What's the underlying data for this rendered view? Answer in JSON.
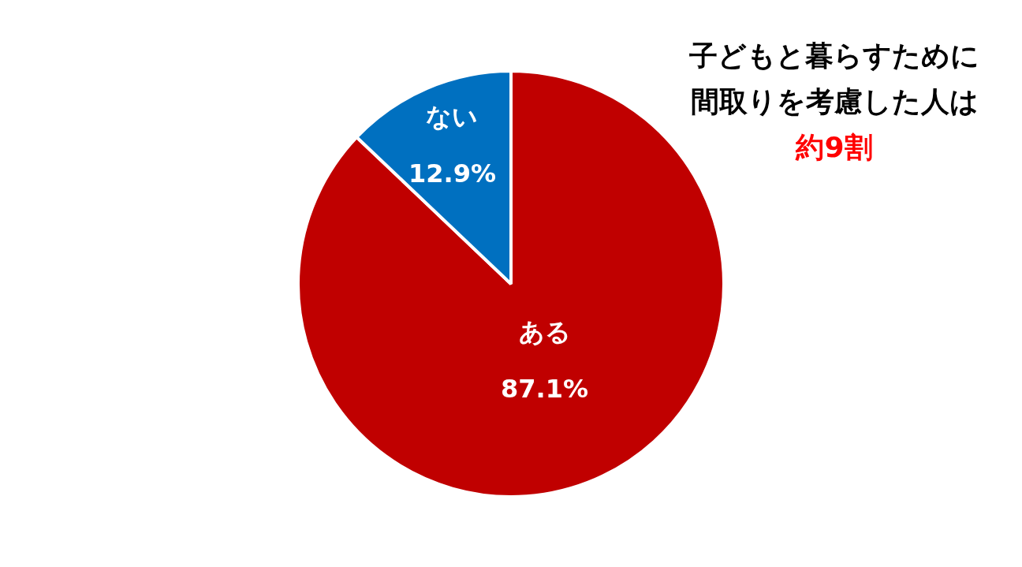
{
  "chart_data": {
    "type": "pie",
    "title": "子どもと暮らすために間取りを考慮した人は",
    "subtitle": "約9割",
    "categories": [
      "ある",
      "ない"
    ],
    "values": [
      87.1,
      12.9
    ],
    "colors": [
      "#c00000",
      "#0070c0"
    ],
    "value_labels": [
      "87.1%",
      "12.9%"
    ]
  }
}
